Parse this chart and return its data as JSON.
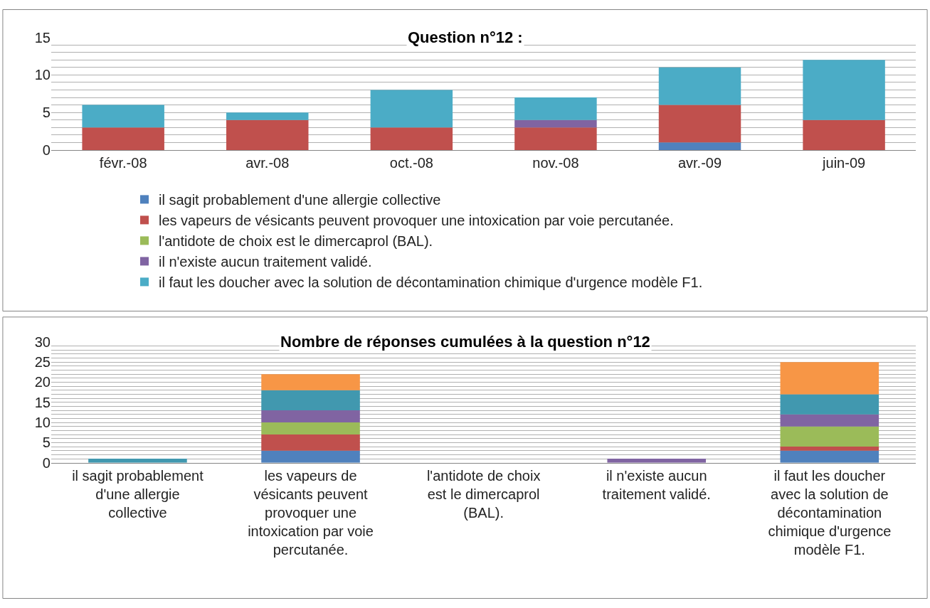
{
  "chart_data": [
    {
      "type": "bar",
      "stacked": true,
      "title": "Question n°12 :",
      "categories": [
        "févr.-08",
        "avr.-08",
        "oct.-08",
        "nov.-08",
        "avr.-09",
        "juin-09"
      ],
      "series": [
        {
          "name": "il sagit probablement d'une allergie collective",
          "color": "#4f81bd",
          "values": [
            0,
            0,
            0,
            0,
            1,
            0
          ]
        },
        {
          "name": "les vapeurs de vésicants peuvent provoquer une intoxication par voie percutanée.",
          "color": "#c0504d",
          "values": [
            3,
            4,
            3,
            3,
            5,
            4
          ]
        },
        {
          "name": "l'antidote de choix est le dimercaprol (BAL).",
          "color": "#9bbb59",
          "values": [
            0,
            0,
            0,
            0,
            0,
            0
          ]
        },
        {
          "name": "il n'existe aucun traitement validé.",
          "color": "#8064a2",
          "values": [
            0,
            0,
            0,
            1,
            0,
            0
          ]
        },
        {
          "name": "il faut les doucher avec la solution de décontamination chimique d'urgence modèle F1.",
          "color": "#4bacc6",
          "values": [
            3,
            1,
            5,
            3,
            5,
            8
          ]
        }
      ],
      "ylim": [
        0,
        15
      ],
      "yticks": [
        0,
        {
          "value": 1,
          "label": null
        },
        {
          "value": 2,
          "label": null
        },
        {
          "value": 3,
          "label": null
        },
        {
          "value": 4,
          "label": null
        },
        5,
        {
          "value": 6,
          "label": null
        },
        {
          "value": 7,
          "label": null
        },
        {
          "value": 8,
          "label": null
        },
        {
          "value": 9,
          "label": null
        },
        10,
        {
          "value": 11,
          "label": null
        },
        {
          "value": 12,
          "label": null
        },
        {
          "value": 13,
          "label": null
        },
        {
          "value": 14,
          "label": null
        },
        15
      ],
      "grid": "y",
      "legend": "bottom"
    },
    {
      "type": "bar",
      "stacked": true,
      "title": "Nombre de réponses cumulées à la question n°12",
      "categories": [
        "il sagit probablement d'une allergie collective",
        "les vapeurs de vésicants peuvent provoquer une intoxication par voie percutanée.",
        "l'antidote de choix est le dimercaprol (BAL).",
        "il n'existe aucun traitement validé.",
        "il faut les doucher avec la solution de décontamination chimique d'urgence modèle F1."
      ],
      "series": [
        {
          "color": "#4f81bd",
          "values": [
            0,
            3,
            0,
            0,
            3
          ]
        },
        {
          "color": "#c0504d",
          "values": [
            0,
            4,
            0,
            0,
            1
          ]
        },
        {
          "color": "#9bbb59",
          "values": [
            0,
            3,
            0,
            0,
            5
          ]
        },
        {
          "color": "#8064a2",
          "values": [
            0,
            3,
            0,
            1,
            3
          ]
        },
        {
          "color": "#4198af",
          "values": [
            1,
            5,
            0,
            0,
            5
          ]
        },
        {
          "color": "#f79646",
          "values": [
            0,
            4,
            0,
            0,
            8
          ]
        }
      ],
      "ylim": [
        0,
        30
      ],
      "yticks": [
        0,
        {
          "value": 1,
          "label": null
        },
        {
          "value": 2,
          "label": null
        },
        {
          "value": 3,
          "label": null
        },
        {
          "value": 4,
          "label": null
        },
        5,
        {
          "value": 6,
          "label": null
        },
        {
          "value": 7,
          "label": null
        },
        {
          "value": 8,
          "label": null
        },
        {
          "value": 9,
          "label": null
        },
        10,
        {
          "value": 11,
          "label": null
        },
        {
          "value": 12,
          "label": null
        },
        {
          "value": 13,
          "label": null
        },
        {
          "value": 14,
          "label": null
        },
        15,
        {
          "value": 16,
          "label": null
        },
        {
          "value": 17,
          "label": null
        },
        {
          "value": 18,
          "label": null
        },
        {
          "value": 19,
          "label": null
        },
        20,
        {
          "value": 21,
          "label": null
        },
        {
          "value": 22,
          "label": null
        },
        {
          "value": 23,
          "label": null
        },
        {
          "value": 24,
          "label": null
        },
        25,
        {
          "value": 26,
          "label": null
        },
        {
          "value": 27,
          "label": null
        },
        {
          "value": 28,
          "label": null
        },
        {
          "value": 29,
          "label": null
        },
        30
      ],
      "grid": "y"
    }
  ]
}
